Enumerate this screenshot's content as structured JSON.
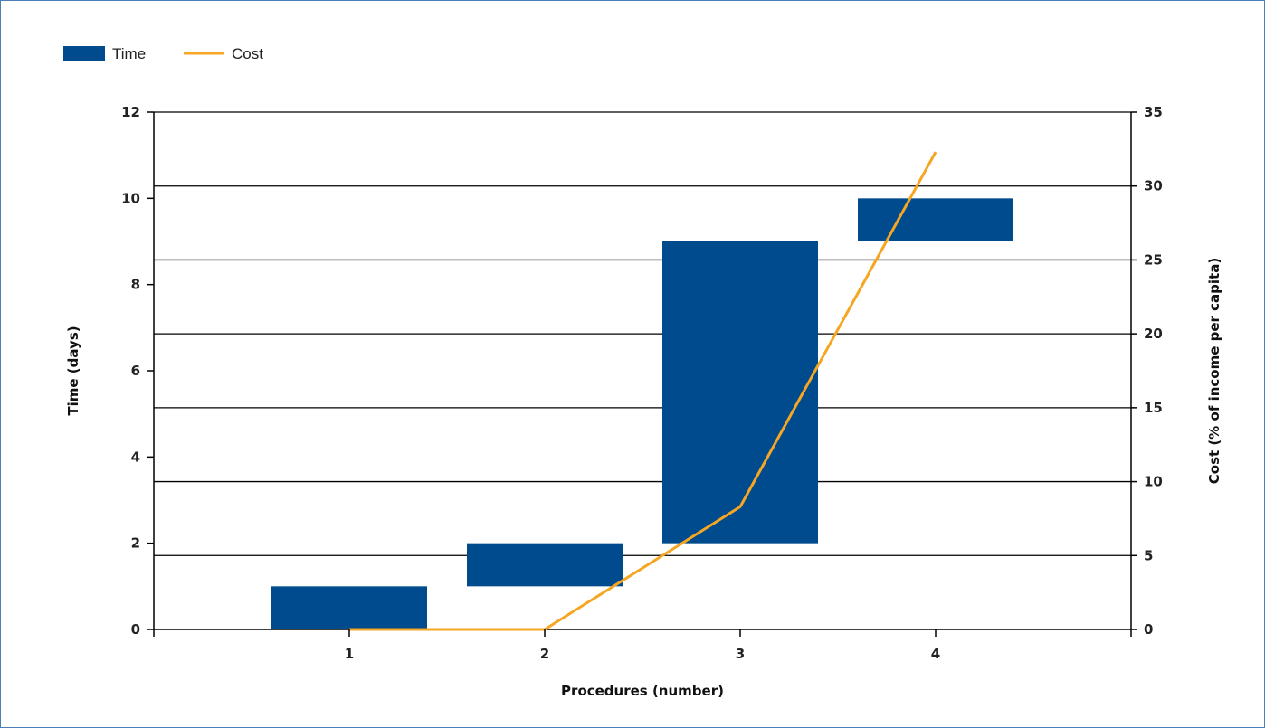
{
  "chart_data": {
    "type": "bar",
    "bar_style": "floating",
    "x_label": "Procedures (number)",
    "categories": [
      "1",
      "2",
      "3",
      "4"
    ],
    "x_ticks": [
      "1",
      "2",
      "3",
      "4"
    ],
    "series": [
      {
        "name": "Time",
        "kind": "floating-bar",
        "axis": "left",
        "color": "#004b8d",
        "ranges": [
          [
            0,
            1
          ],
          [
            1,
            2
          ],
          [
            2,
            9
          ],
          [
            9,
            10
          ]
        ]
      },
      {
        "name": "Cost",
        "kind": "line",
        "axis": "right",
        "color": "#f5a623",
        "values": [
          0,
          0,
          8.3,
          32.3
        ]
      }
    ],
    "y_left": {
      "label": "Time (days)",
      "ylim": [
        0,
        12
      ],
      "ticks": [
        "0",
        "2",
        "4",
        "6",
        "8",
        "10",
        "12"
      ]
    },
    "y_right": {
      "label": "Cost (% of income per capita)",
      "ylim": [
        0,
        35
      ],
      "ticks": [
        "0",
        "5",
        "10",
        "15",
        "20",
        "25",
        "30",
        "35"
      ]
    },
    "grid": "horizontal on right-axis ticks",
    "legend": "top-left"
  }
}
